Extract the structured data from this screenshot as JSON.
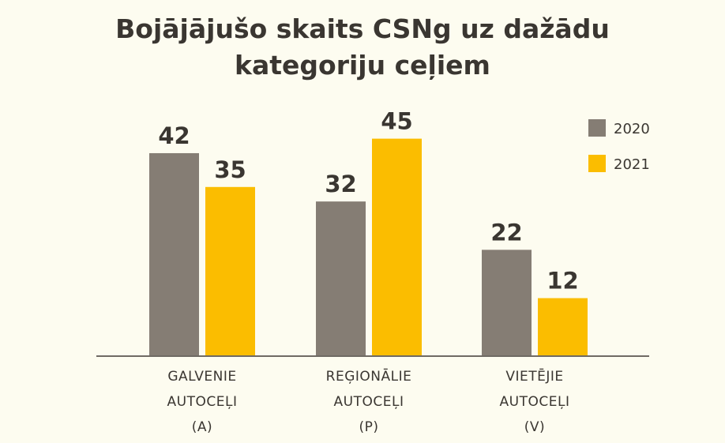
{
  "chart_data": {
    "type": "bar",
    "title_lines": [
      "Bojājājušo skaits CSNg uz dažādu",
      "kategoriju ceļiem"
    ],
    "categories": [
      [
        "GALVENIE",
        "AUTOCEĻI",
        "(A)"
      ],
      [
        "REĢIONĀLIE",
        "AUTOCEĻI",
        "(P)"
      ],
      [
        "VIETĒJIE",
        "AUTOCEĻI",
        "(V)"
      ]
    ],
    "series": [
      {
        "name": "2020",
        "values": [
          42,
          32,
          22
        ],
        "color": "#857d74"
      },
      {
        "name": "2021",
        "values": [
          35,
          45,
          12
        ],
        "color": "#fbbd00"
      }
    ],
    "ylim": [
      0,
      50
    ],
    "grid": false,
    "data_labels": true,
    "legend_position": "top-right"
  }
}
